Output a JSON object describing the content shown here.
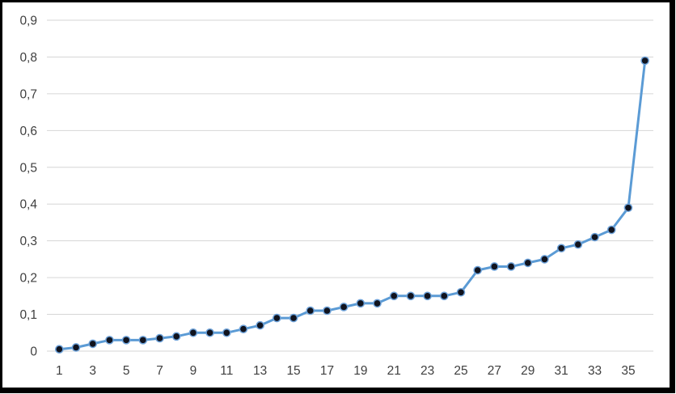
{
  "figure": {
    "background_color": "#ffffff",
    "border_color": "#000000"
  },
  "chart_data": {
    "type": "line",
    "title": "",
    "xlabel": "",
    "ylabel": "",
    "legend": "none",
    "grid": "horizontal",
    "decimal_separator": ",",
    "x": [
      1,
      2,
      3,
      4,
      5,
      6,
      7,
      8,
      9,
      10,
      11,
      12,
      13,
      14,
      15,
      16,
      17,
      18,
      19,
      20,
      21,
      22,
      23,
      24,
      25,
      26,
      27,
      28,
      29,
      30,
      31,
      32,
      33,
      34,
      35,
      36
    ],
    "values": [
      0.005,
      0.01,
      0.02,
      0.03,
      0.03,
      0.03,
      0.035,
      0.04,
      0.05,
      0.05,
      0.05,
      0.06,
      0.07,
      0.09,
      0.09,
      0.11,
      0.11,
      0.12,
      0.13,
      0.13,
      0.15,
      0.15,
      0.15,
      0.15,
      0.16,
      0.22,
      0.23,
      0.23,
      0.24,
      0.25,
      0.28,
      0.29,
      0.31,
      0.33,
      0.39,
      0.79
    ],
    "xlim": [
      1,
      36
    ],
    "ylim": [
      0,
      0.9
    ],
    "x_tick_positions": [
      1,
      3,
      5,
      7,
      9,
      11,
      13,
      15,
      17,
      19,
      21,
      23,
      25,
      27,
      29,
      31,
      33,
      35
    ],
    "x_tick_labels": [
      "1",
      "3",
      "5",
      "7",
      "9",
      "11",
      "13",
      "15",
      "17",
      "19",
      "21",
      "23",
      "25",
      "27",
      "29",
      "31",
      "33",
      "35"
    ],
    "y_tick_positions": [
      0,
      0.1,
      0.2,
      0.3,
      0.4,
      0.5,
      0.6,
      0.7,
      0.8,
      0.9
    ],
    "y_tick_labels": [
      "0",
      "0,1",
      "0,2",
      "0,3",
      "0,4",
      "0,5",
      "0,6",
      "0,7",
      "0,8",
      "0,9"
    ],
    "line_color": "#5b9bd5",
    "marker_outline_color": "#6ea2d9",
    "marker_fill_color": "#10131e",
    "gridline_color": "#d6d6d6",
    "tick_label_color": "#3f3f3f"
  }
}
